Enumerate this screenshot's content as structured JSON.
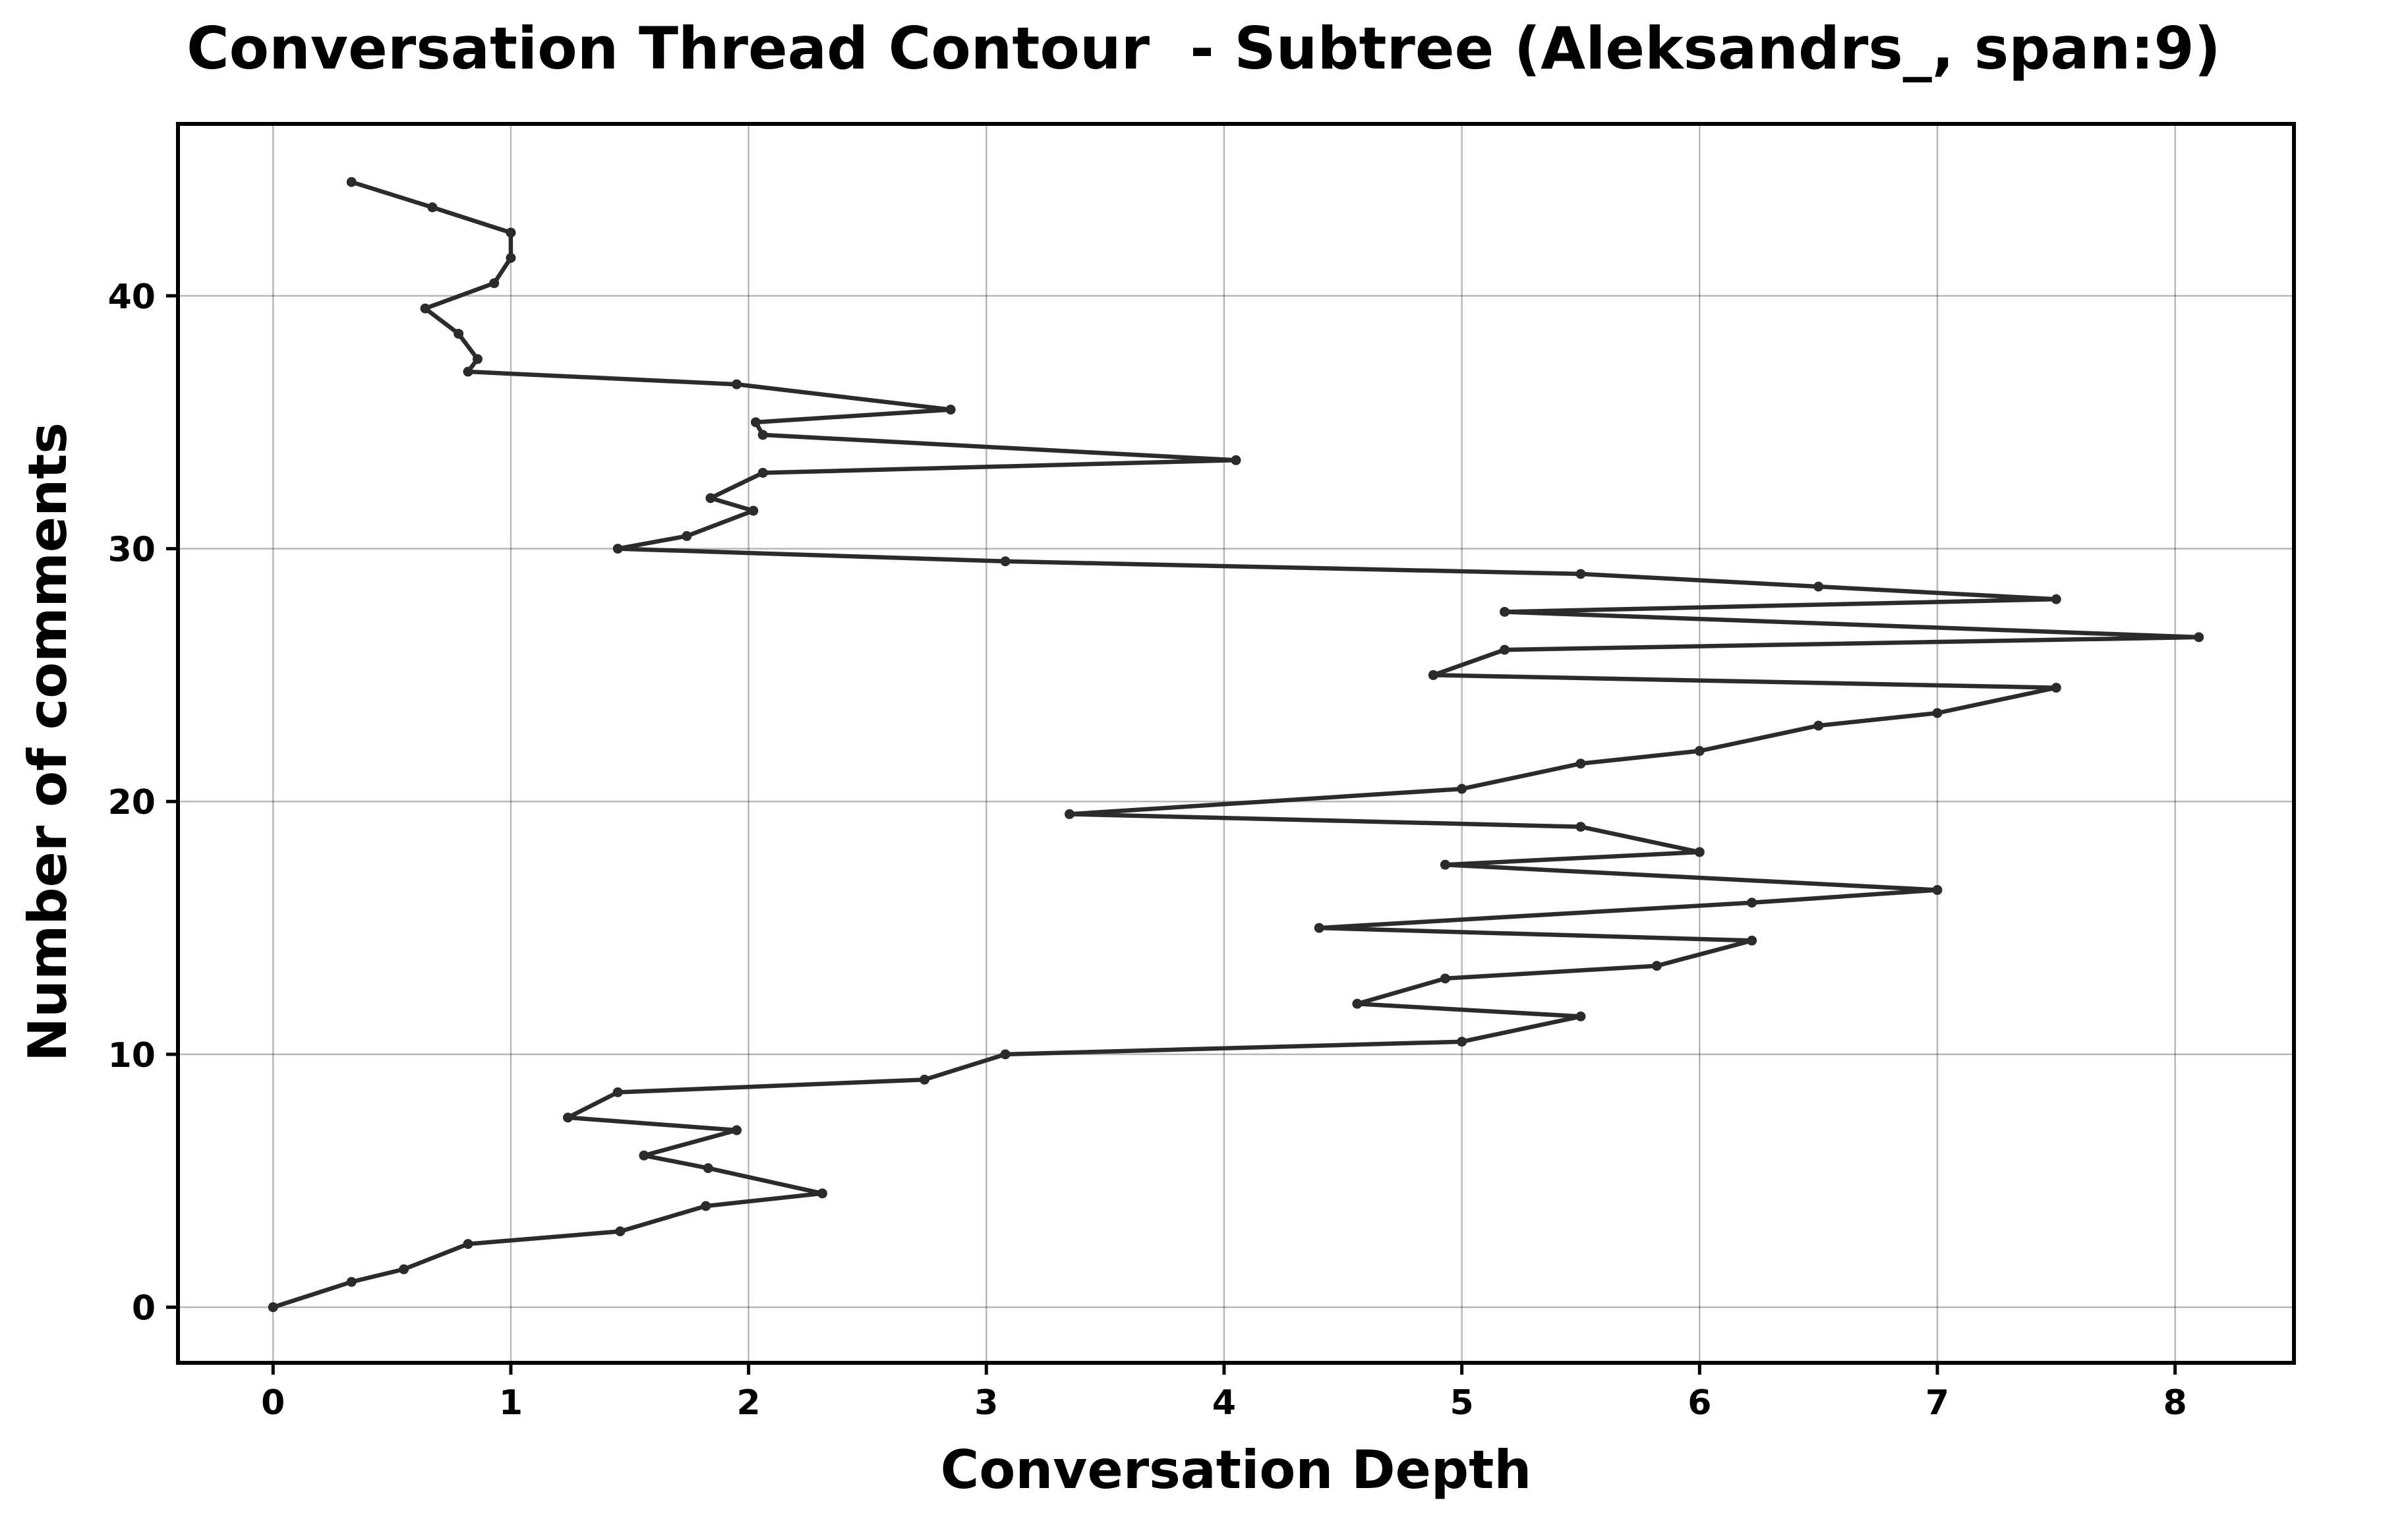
{
  "chart_data": {
    "type": "line",
    "title": "Conversation Thread Contour  - Subtree (Aleksandrs_, span:9)",
    "xlabel": "Conversation Depth",
    "ylabel": "Number of comments",
    "xlim": [
      -0.4,
      8.5
    ],
    "ylim": [
      -2.2,
      46.8
    ],
    "x_ticks": [
      0,
      1,
      2,
      3,
      4,
      5,
      6,
      7,
      8
    ],
    "y_ticks": [
      0,
      10,
      20,
      30,
      40
    ],
    "grid": true,
    "line_color": "#2b2b2b",
    "series": [
      {
        "x": [
          0,
          0.33,
          0.55,
          0.82,
          1.46,
          1.82,
          2.31,
          1.83,
          1.56,
          1.95,
          1.24,
          1.45,
          2.74,
          3.08,
          5.0,
          5.5,
          4.56,
          4.93,
          5.82,
          6.22,
          4.4,
          6.22,
          7.0,
          4.93,
          6.0,
          5.5,
          3.35,
          5.0,
          5.5,
          6.0,
          6.5,
          7.0,
          7.5,
          4.88,
          5.18,
          8.1,
          5.18,
          7.5,
          6.5,
          5.5,
          3.08,
          1.45,
          1.74,
          2.02,
          1.84,
          2.06,
          4.05,
          2.06,
          2.03,
          2.85,
          1.95,
          0.82,
          0.86,
          0.78,
          0.64,
          0.93,
          1.0,
          1.0,
          0.67,
          0.33
        ],
        "y": [
          0,
          1,
          1.5,
          2.5,
          3,
          4,
          4.5,
          5.5,
          6,
          7,
          7.5,
          8.5,
          9,
          10,
          10.5,
          11.5,
          12,
          13,
          13.5,
          14.5,
          15,
          16,
          16.5,
          17.5,
          18,
          19,
          19.5,
          20.5,
          21.5,
          22,
          23,
          23.5,
          24.5,
          25,
          26,
          26.5,
          27.5,
          28,
          28.5,
          29,
          29.5,
          30,
          30.5,
          31.5,
          32,
          33,
          33.5,
          34.5,
          35,
          35.5,
          36.5,
          37,
          37.5,
          38.5,
          39.5,
          40.5,
          41.5,
          42.5,
          43.5,
          44.5
        ]
      }
    ]
  }
}
